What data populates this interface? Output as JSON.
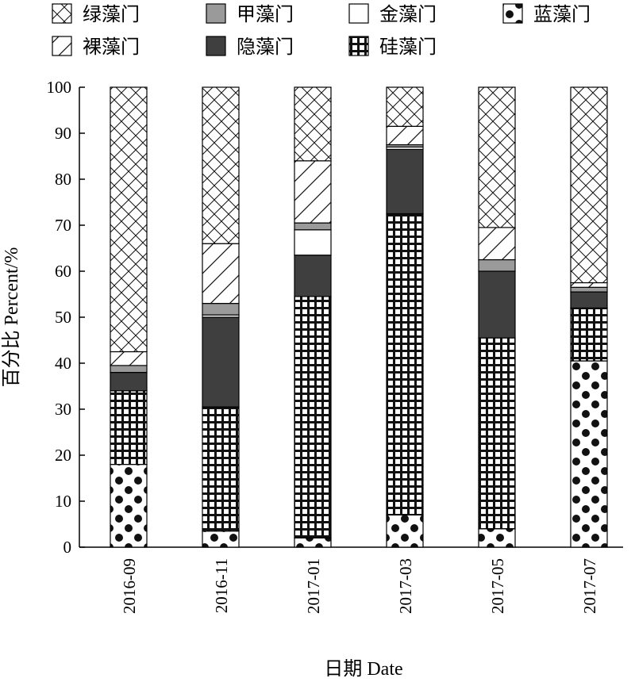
{
  "chart_data": {
    "type": "bar",
    "stacked": true,
    "categories": [
      "2016-09",
      "2016-11",
      "2017-01",
      "2017-03",
      "2017-05",
      "2017-07"
    ],
    "ylim": [
      0,
      100
    ],
    "yticks": [
      0,
      10,
      20,
      30,
      40,
      50,
      60,
      70,
      80,
      90,
      100
    ],
    "xlabel": "日期 Date",
    "ylabel": "百分比 Percent/%",
    "grid": false,
    "legend_position": "top",
    "legend_order": [
      "绿藻门",
      "甲藻门",
      "金藻门",
      "蓝藻门",
      "裸藻门",
      "隐藻门",
      "硅藻门"
    ],
    "series": [
      {
        "name": "蓝藻门",
        "pattern": "dots",
        "values": [
          18,
          3.5,
          2,
          7,
          4,
          40.5
        ]
      },
      {
        "name": "硅藻门",
        "pattern": "grid",
        "values": [
          16,
          27,
          52.5,
          65.5,
          41.5,
          11.5
        ]
      },
      {
        "name": "隐藻门",
        "pattern": "dark",
        "values": [
          4,
          19.5,
          9,
          14,
          14.5,
          3.5
        ]
      },
      {
        "name": "金藻门",
        "pattern": "white",
        "values": [
          0,
          0.5,
          5.5,
          0.5,
          0,
          0
        ]
      },
      {
        "name": "甲藻门",
        "pattern": "gray",
        "values": [
          1.5,
          2.5,
          1.5,
          0.5,
          2.5,
          1
        ]
      },
      {
        "name": "裸藻门",
        "pattern": "diagonal",
        "values": [
          3,
          13,
          13.5,
          4,
          7,
          1
        ]
      },
      {
        "name": "绿藻门",
        "pattern": "crosshatch",
        "values": [
          57.5,
          34,
          16,
          8.5,
          30.5,
          42.5
        ]
      }
    ]
  }
}
